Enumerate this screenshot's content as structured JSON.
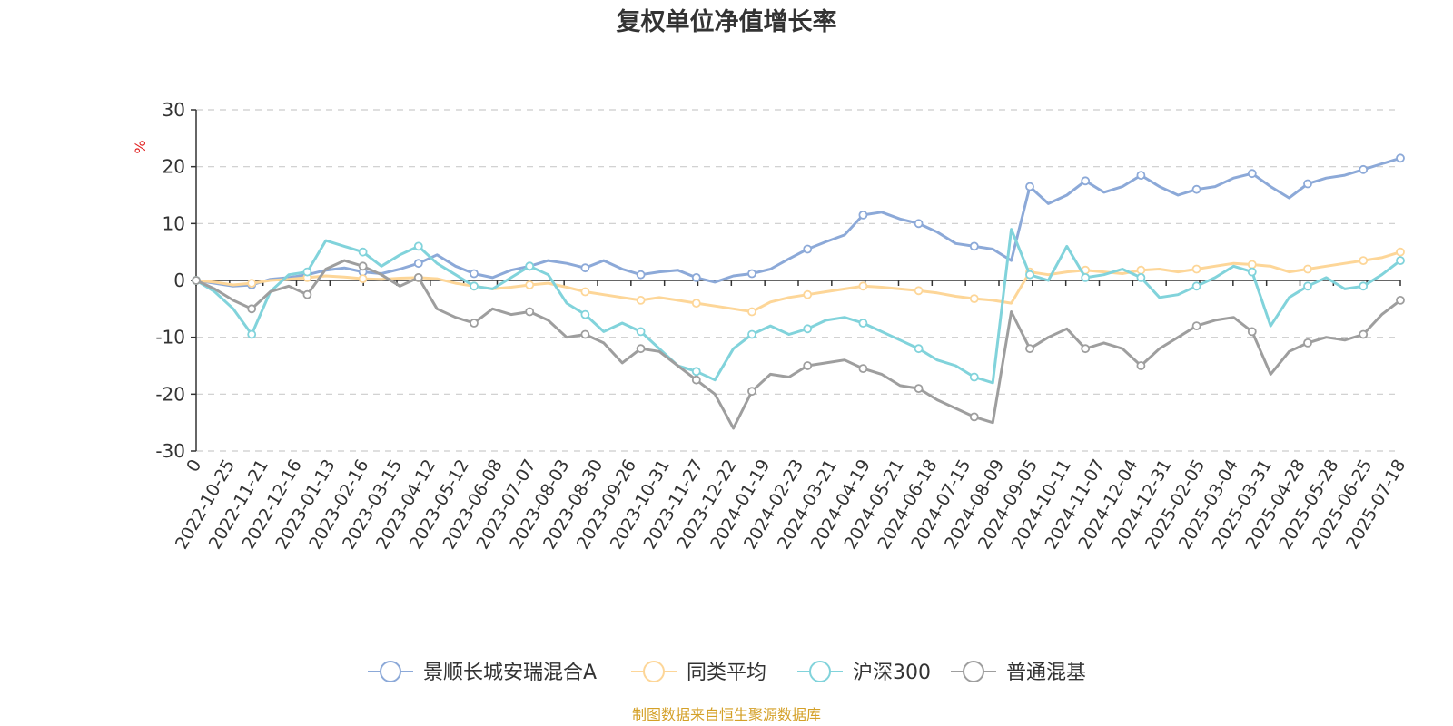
{
  "chart_data": {
    "type": "line",
    "title": "复权单位净值增长率",
    "y_unit": "%",
    "source_note": "制图数据来自恒生聚源数据库",
    "ylim": [
      -30,
      30
    ],
    "y_ticks": [
      "30",
      "20",
      "10",
      "0",
      "-10",
      "-20",
      "-30"
    ],
    "x_tick_labels": [
      "0",
      "2022-10-25",
      "2022-11-21",
      "2022-12-16",
      "2023-01-13",
      "2023-02-16",
      "2023-03-15",
      "2023-04-12",
      "2023-05-12",
      "2023-06-08",
      "2023-07-07",
      "2023-08-03",
      "2023-08-30",
      "2023-09-26",
      "2023-10-31",
      "2023-11-27",
      "2023-12-22",
      "2024-01-19",
      "2024-02-23",
      "2024-03-21",
      "2024-04-19",
      "2024-05-21",
      "2024-06-18",
      "2024-07-15",
      "2024-08-09",
      "2024-09-05",
      "2024-10-11",
      "2024-11-07",
      "2024-12-04",
      "2024-12-31",
      "2025-02-05",
      "2025-03-04",
      "2025-03-31",
      "2025-04-28",
      "2025-05-28",
      "2025-06-25",
      "2025-07-18"
    ],
    "grid": "horizontal dashed",
    "legend_position": "bottom",
    "series": [
      {
        "name": "景顺长城安瑞混合A",
        "color": "#8ca9d8",
        "values": [
          0,
          -0.5,
          -1,
          -0.8,
          0.2,
          0.5,
          1.0,
          1.8,
          2.2,
          1.5,
          1.2,
          2.0,
          3.0,
          4.5,
          2.5,
          1.2,
          0.5,
          1.8,
          2.5,
          3.5,
          3.0,
          2.2,
          3.5,
          2.0,
          1.0,
          1.5,
          1.8,
          0.5,
          -0.3,
          0.8,
          1.2,
          2.0,
          3.8,
          5.5,
          6.8,
          8.0,
          11.5,
          12.0,
          10.8,
          10.0,
          8.5,
          6.5,
          6.0,
          5.5,
          3.5,
          16.5,
          13.5,
          15.0,
          17.5,
          15.5,
          16.5,
          18.5,
          16.5,
          15.0,
          16.0,
          16.5,
          18.0,
          18.8,
          16.5,
          14.5,
          17.0,
          18.0,
          18.5,
          19.5,
          20.5,
          21.5
        ]
      },
      {
        "name": "同类平均",
        "color": "#fdd698",
        "values": [
          0,
          -0.3,
          -0.8,
          -0.5,
          0,
          0.2,
          0.5,
          0.8,
          0.6,
          0.3,
          0.2,
          0.4,
          0.5,
          0.3,
          -0.5,
          -1.0,
          -1.5,
          -1.2,
          -0.8,
          -0.5,
          -1.2,
          -2.0,
          -2.5,
          -3.0,
          -3.5,
          -3.0,
          -3.5,
          -4.0,
          -4.5,
          -5.0,
          -5.5,
          -3.8,
          -3.0,
          -2.5,
          -2.0,
          -1.5,
          -1.0,
          -1.2,
          -1.5,
          -1.8,
          -2.2,
          -2.8,
          -3.2,
          -3.5,
          -4.0,
          1.5,
          1.0,
          1.5,
          1.8,
          1.5,
          1.2,
          1.8,
          2.0,
          1.5,
          2.0,
          2.5,
          3.0,
          2.8,
          2.5,
          1.5,
          2.0,
          2.5,
          3.0,
          3.5,
          4.0,
          5.0
        ]
      },
      {
        "name": "沪深300",
        "color": "#81d3db",
        "values": [
          0,
          -2.0,
          -5.0,
          -9.5,
          -2.0,
          1.0,
          1.5,
          7.0,
          6.0,
          5.0,
          2.5,
          4.5,
          6.0,
          3.0,
          1.0,
          -1.0,
          -1.5,
          0.5,
          2.5,
          1.0,
          -4.0,
          -6.0,
          -9.0,
          -7.5,
          -9.0,
          -12.0,
          -15.0,
          -16.0,
          -17.5,
          -12.0,
          -9.5,
          -8.0,
          -9.5,
          -8.5,
          -7.0,
          -6.5,
          -7.5,
          -9.0,
          -10.5,
          -12.0,
          -14.0,
          -15.0,
          -17.0,
          -18.0,
          9.0,
          1.0,
          0.0,
          6.0,
          0.5,
          1.0,
          2.0,
          0.5,
          -3.0,
          -2.5,
          -1.0,
          0.5,
          2.5,
          1.5,
          -8.0,
          -3.0,
          -1.0,
          0.5,
          -1.5,
          -1.0,
          1.0,
          3.5
        ]
      },
      {
        "name": "普通混基",
        "color": "#9e9e9e",
        "values": [
          0,
          -1.5,
          -3.5,
          -5.0,
          -2.0,
          -1.0,
          -2.5,
          2.0,
          3.5,
          2.5,
          1.0,
          -1.0,
          0.5,
          -5.0,
          -6.5,
          -7.5,
          -5.0,
          -6.0,
          -5.5,
          -7.0,
          -10.0,
          -9.5,
          -11.0,
          -14.5,
          -12.0,
          -12.5,
          -15.0,
          -17.5,
          -20.0,
          -26.0,
          -19.5,
          -16.5,
          -17.0,
          -15.0,
          -14.5,
          -14.0,
          -15.5,
          -16.5,
          -18.5,
          -19.0,
          -21.0,
          -22.5,
          -24.0,
          -25.0,
          -5.5,
          -12.0,
          -10.0,
          -8.5,
          -12.0,
          -11.0,
          -12.0,
          -15.0,
          -12.0,
          -10.0,
          -8.0,
          -7.0,
          -6.5,
          -9.0,
          -16.5,
          -12.5,
          -11.0,
          -10.0,
          -10.5,
          -9.5,
          -6.0,
          -3.5
        ]
      }
    ]
  }
}
